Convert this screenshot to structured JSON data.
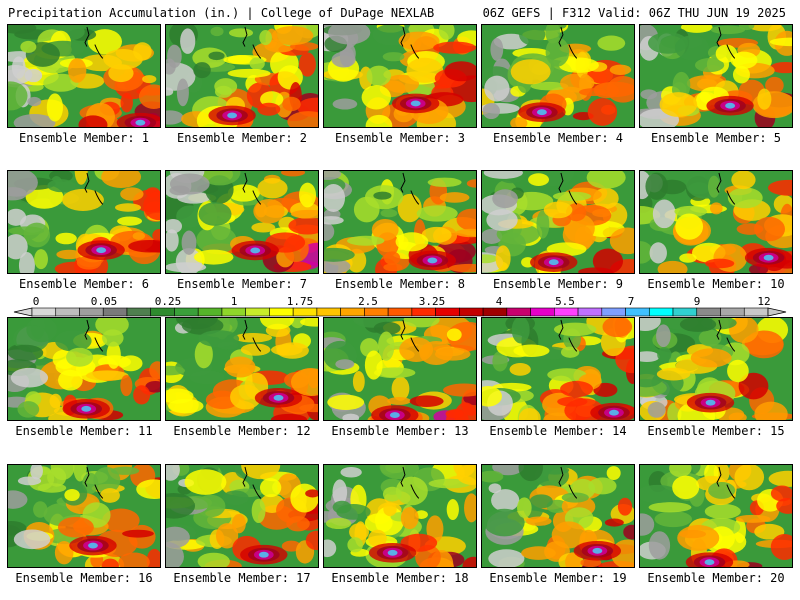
{
  "header": {
    "left": "Precipitation Accumulation (in.) | College of DuPage NEXLAB",
    "right": "06Z GEFS | F312 Valid: 06Z THU JUN 19 2025"
  },
  "members": [
    "Ensemble Member: 1",
    "Ensemble Member: 2",
    "Ensemble Member: 3",
    "Ensemble Member: 4",
    "Ensemble Member: 5",
    "Ensemble Member: 6",
    "Ensemble Member: 7",
    "Ensemble Member: 8",
    "Ensemble Member: 9",
    "Ensemble Member: 10",
    "Ensemble Member: 11",
    "Ensemble Member: 12",
    "Ensemble Member: 13",
    "Ensemble Member: 14",
    "Ensemble Member: 15",
    "Ensemble Member: 16",
    "Ensemble Member: 17",
    "Ensemble Member: 18",
    "Ensemble Member: 19",
    "Ensemble Member: 20"
  ],
  "colorbar": {
    "tick_labels": [
      "0",
      "0.05",
      "0.25",
      "1",
      "1.75",
      "2.5",
      "3.25",
      "4",
      "5.5",
      "7",
      "9",
      "12"
    ],
    "colors": [
      "#d8d8d8",
      "#bdbdbd",
      "#9e9e9e",
      "#7a7a7a",
      "#4f7f4f",
      "#2e8b2e",
      "#3aa03a",
      "#55b52a",
      "#8fd62a",
      "#c8ec2a",
      "#ffff00",
      "#ffe100",
      "#ffc400",
      "#ffa500",
      "#ff7f00",
      "#ff5a00",
      "#ff2a00",
      "#e60000",
      "#c40000",
      "#a00000",
      "#c8006e",
      "#e600c8",
      "#ff40ff",
      "#c070ff",
      "#7f9fff",
      "#40c0ff",
      "#00ffff",
      "#30d0d0",
      "#8a8a8a",
      "#a8a8a8",
      "#c8c8c8"
    ]
  }
}
